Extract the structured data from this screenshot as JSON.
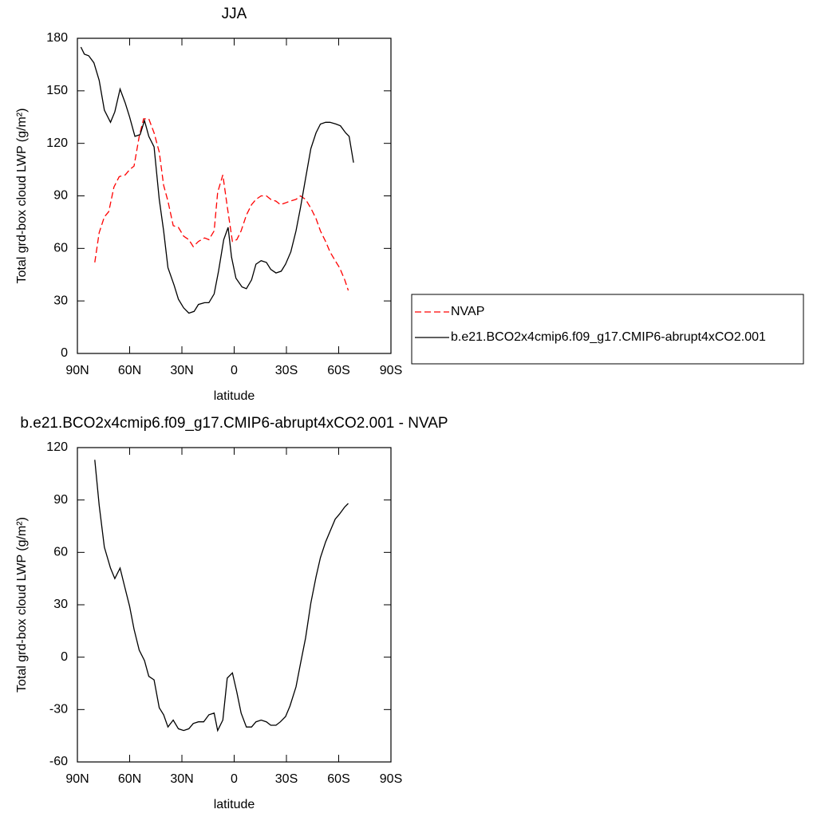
{
  "chart_data": [
    {
      "type": "line",
      "title": "JJA",
      "xlabel": "latitude",
      "ylabel": "Total grd-box cloud LWP (g/m²)",
      "xlim": [
        90,
        -90
      ],
      "ylim": [
        0,
        180
      ],
      "xticks": [
        {
          "value": 90,
          "label": "90N"
        },
        {
          "value": 60,
          "label": "60N"
        },
        {
          "value": 30,
          "label": "30N"
        },
        0,
        {
          "value": -30,
          "label": "30S"
        },
        {
          "value": -60,
          "label": "60S"
        },
        {
          "value": -90,
          "label": "90S"
        }
      ],
      "yticks": [
        0,
        30,
        60,
        90,
        120,
        150,
        180
      ],
      "legend": "right",
      "series": [
        {
          "name": "NVAP",
          "color": "#ff0000",
          "dash": true,
          "x": [
            80,
            77.5,
            74.5,
            72,
            69,
            66,
            62.5,
            60,
            57.5,
            54.5,
            52,
            49,
            46,
            43,
            40.5,
            38,
            35,
            32,
            29,
            26,
            23.5,
            20.5,
            17,
            14.5,
            11.5,
            9.5,
            6.5,
            4,
            1,
            -1.5,
            -4,
            -7,
            -10,
            -12.5,
            -15.5,
            -18.5,
            -21,
            -24,
            -26.5,
            -29.5,
            -32,
            -35.5,
            -38,
            -41,
            -44,
            -47,
            -49.5,
            -52.5,
            -55,
            -58,
            -60.5,
            -63.5,
            -65.5
          ],
          "values": [
            52,
            69,
            78,
            81,
            95,
            101,
            102,
            105,
            107,
            124,
            134,
            134,
            126,
            115,
            96,
            87,
            73,
            72,
            67,
            65,
            61,
            64,
            66,
            65,
            70,
            92,
            102,
            84,
            64,
            65,
            70,
            79,
            85,
            88,
            90,
            90,
            88,
            87,
            85,
            86,
            87,
            88,
            90,
            88,
            83,
            77,
            70,
            64,
            58,
            53,
            49,
            42,
            36
          ]
        },
        {
          "name": "b.e21.BCO2x4cmip6.f09_g17.CMIP6-abrupt4xCO2.001",
          "color": "#000000",
          "dash": false,
          "x": [
            88,
            86,
            83.5,
            80.5,
            77.5,
            74.5,
            71,
            68.5,
            65.5,
            62.5,
            60,
            57,
            54,
            51.5,
            49,
            46,
            43,
            40.5,
            38,
            34.5,
            32,
            29,
            26,
            23,
            20.5,
            17,
            14.5,
            11.5,
            9,
            6,
            3.5,
            1.5,
            -1,
            -4.5,
            -7,
            -10,
            -12.5,
            -15.5,
            -18.5,
            -21,
            -24,
            -27,
            -29.5,
            -32.5,
            -35.5,
            -38,
            -41,
            -44,
            -47,
            -49.5,
            -52.5,
            -55,
            -58.5,
            -61,
            -64,
            -66,
            -68.5
          ],
          "values": [
            175,
            171,
            170,
            166,
            156,
            139,
            132,
            138,
            151,
            143,
            135,
            124,
            125,
            133,
            124,
            118,
            88,
            70,
            49,
            39,
            31,
            26,
            23,
            24,
            28,
            29,
            29,
            34,
            47,
            65,
            72,
            55,
            43,
            38,
            37,
            42,
            51,
            53,
            52,
            48,
            46,
            47,
            51,
            58,
            70,
            83,
            100,
            117,
            126,
            131,
            132,
            132,
            131,
            130,
            126,
            124,
            109
          ]
        }
      ]
    },
    {
      "type": "line",
      "title": "b.e21.BCO2x4cmip6.f09_g17.CMIP6-abrupt4xCO2.001 - NVAP",
      "xlabel": "latitude",
      "ylabel": "Total grd-box cloud LWP (g/m²)",
      "xlim": [
        90,
        -90
      ],
      "ylim": [
        -60,
        120
      ],
      "xticks": [
        {
          "value": 90,
          "label": "90N"
        },
        {
          "value": 60,
          "label": "60N"
        },
        {
          "value": 30,
          "label": "30N"
        },
        0,
        {
          "value": -30,
          "label": "30S"
        },
        {
          "value": -60,
          "label": "60S"
        },
        {
          "value": -90,
          "label": "90S"
        }
      ],
      "yticks": [
        -60,
        -30,
        0,
        30,
        60,
        90,
        120
      ],
      "series": [
        {
          "color": "#000000",
          "dash": false,
          "x": [
            80,
            77.5,
            74.5,
            71,
            68.5,
            65.5,
            63,
            60,
            57.5,
            54.5,
            51.5,
            49,
            46,
            43,
            40.5,
            38,
            35,
            32,
            29,
            26,
            23.5,
            20.5,
            17.5,
            14.5,
            11.5,
            9.5,
            6.5,
            4,
            1,
            -1.5,
            -4,
            -7,
            -10,
            -12.5,
            -15.5,
            -18.5,
            -21,
            -24,
            -26.5,
            -29.5,
            -32,
            -35.5,
            -38,
            -41,
            -44,
            -47,
            -49.5,
            -52.5,
            -55,
            -58,
            -60.5,
            -63.5,
            -65.5
          ],
          "values": [
            113,
            87,
            63,
            51,
            45,
            51,
            41,
            29,
            16,
            4,
            -2,
            -11,
            -13,
            -29,
            -33,
            -40,
            -36,
            -41,
            -42,
            -41,
            -38,
            -37,
            -37,
            -33,
            -32,
            -42,
            -36,
            -12,
            -9,
            -20,
            -32,
            -40,
            -40,
            -37,
            -36,
            -37,
            -39,
            -39,
            -37,
            -34,
            -28,
            -17,
            -4,
            11,
            31,
            46,
            57,
            66,
            72,
            79,
            82,
            86,
            88
          ]
        }
      ]
    }
  ]
}
